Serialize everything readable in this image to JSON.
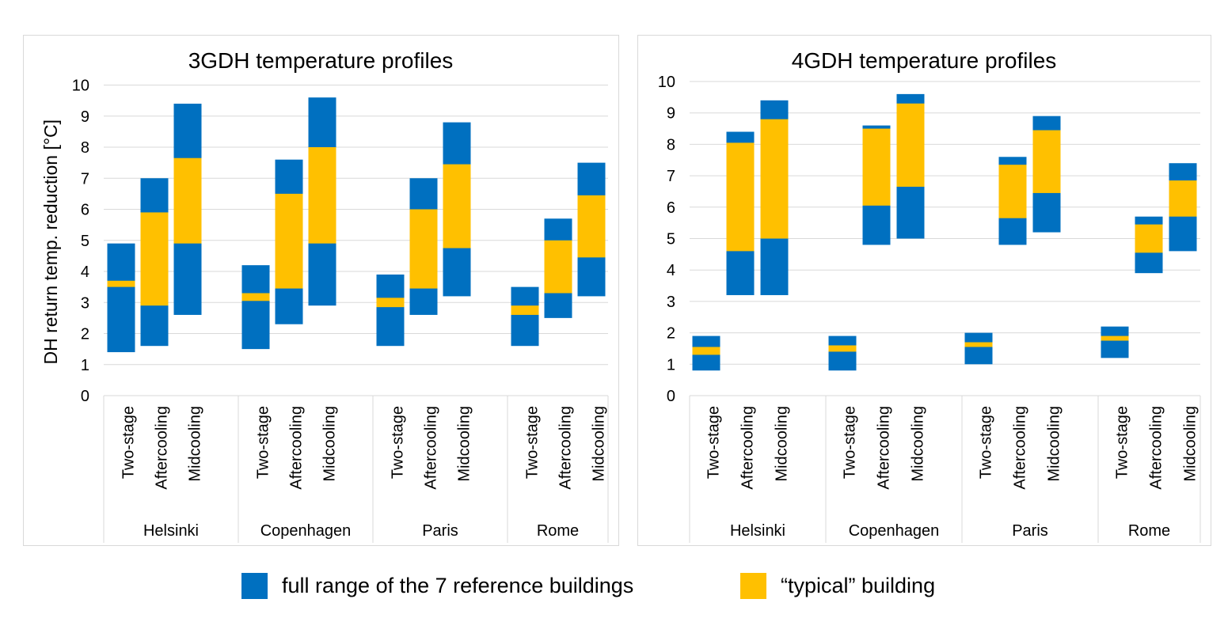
{
  "colors": {
    "range": "#0070C0",
    "typical": "#FFC000",
    "grid": "#D9D9D9",
    "frame": "#D9D9D9"
  },
  "legend": {
    "range_label": "full range of the 7 reference buildings",
    "typical_label": "“typical” building"
  },
  "chart_data": [
    {
      "type": "bar",
      "subtype": "floating-stacked-range",
      "title": "3GDH temperature profiles",
      "ylabel": "DH return temp. reduction [°C]",
      "xlabel": "",
      "ylim": [
        0,
        10
      ],
      "yticks": [
        "0",
        "1",
        "2",
        "3",
        "4",
        "5",
        "6",
        "7",
        "8",
        "9",
        "10"
      ],
      "grid": true,
      "legend_position": "bottom",
      "groups": [
        {
          "name": "Helsinki",
          "categories": [
            {
              "label": "Two-stage",
              "range": [
                1.4,
                4.9
              ],
              "typical": [
                3.5,
                3.7
              ]
            },
            {
              "label": "Aftercooling",
              "range": [
                1.6,
                7.0
              ],
              "typical": [
                2.9,
                5.9
              ]
            },
            {
              "label": "Midcooling",
              "range": [
                2.6,
                9.4
              ],
              "typical": [
                4.9,
                7.65
              ]
            }
          ]
        },
        {
          "name": "Copenhagen",
          "categories": [
            {
              "label": "Two-stage",
              "range": [
                1.5,
                4.2
              ],
              "typical": [
                3.05,
                3.3
              ]
            },
            {
              "label": "Aftercooling",
              "range": [
                2.3,
                7.6
              ],
              "typical": [
                3.45,
                6.5
              ]
            },
            {
              "label": "Midcooling",
              "range": [
                2.9,
                9.6
              ],
              "typical": [
                4.9,
                8.0
              ]
            }
          ]
        },
        {
          "name": "Paris",
          "categories": [
            {
              "label": "Two-stage",
              "range": [
                1.6,
                3.9
              ],
              "typical": [
                2.85,
                3.15
              ]
            },
            {
              "label": "Aftercooling",
              "range": [
                2.6,
                7.0
              ],
              "typical": [
                3.45,
                6.0
              ]
            },
            {
              "label": "Midcooling",
              "range": [
                3.2,
                8.8
              ],
              "typical": [
                4.75,
                7.45
              ]
            }
          ]
        },
        {
          "name": "Rome",
          "categories": [
            {
              "label": "Two-stage",
              "range": [
                1.6,
                3.5
              ],
              "typical": [
                2.6,
                2.9
              ]
            },
            {
              "label": "Aftercooling",
              "range": [
                2.5,
                5.7
              ],
              "typical": [
                3.3,
                5.0
              ]
            },
            {
              "label": "Midcooling",
              "range": [
                3.2,
                7.5
              ],
              "typical": [
                4.45,
                6.45
              ]
            }
          ]
        }
      ]
    },
    {
      "type": "bar",
      "subtype": "floating-stacked-range",
      "title": "4GDH temperature profiles",
      "ylabel": "",
      "xlabel": "",
      "ylim": [
        0,
        10
      ],
      "yticks": [
        "0",
        "1",
        "2",
        "3",
        "4",
        "5",
        "6",
        "7",
        "8",
        "9",
        "10"
      ],
      "grid": true,
      "legend_position": "bottom",
      "groups": [
        {
          "name": "Helsinki",
          "categories": [
            {
              "label": "Two-stage",
              "range": [
                0.8,
                1.9
              ],
              "typical": [
                1.3,
                1.55
              ]
            },
            {
              "label": "Aftercooling",
              "range": [
                3.2,
                8.4
              ],
              "typical": [
                4.6,
                8.05
              ]
            },
            {
              "label": "Midcooling",
              "range": [
                3.2,
                9.4
              ],
              "typical": [
                5.0,
                8.8
              ]
            }
          ]
        },
        {
          "name": "Copenhagen",
          "categories": [
            {
              "label": "Two-stage",
              "range": [
                0.8,
                1.9
              ],
              "typical": [
                1.4,
                1.6
              ]
            },
            {
              "label": "Aftercooling",
              "range": [
                4.8,
                8.6
              ],
              "typical": [
                6.05,
                8.5
              ]
            },
            {
              "label": "Midcooling",
              "range": [
                5.0,
                9.6
              ],
              "typical": [
                6.65,
                9.3
              ]
            }
          ]
        },
        {
          "name": "Paris",
          "categories": [
            {
              "label": "Two-stage",
              "range": [
                1.0,
                2.0
              ],
              "typical": [
                1.55,
                1.7
              ]
            },
            {
              "label": "Aftercooling",
              "range": [
                4.8,
                7.6
              ],
              "typical": [
                5.65,
                7.35
              ]
            },
            {
              "label": "Midcooling",
              "range": [
                5.2,
                8.9
              ],
              "typical": [
                6.45,
                8.45
              ]
            }
          ]
        },
        {
          "name": "Rome",
          "categories": [
            {
              "label": "Two-stage",
              "range": [
                1.2,
                2.2
              ],
              "typical": [
                1.75,
                1.9
              ]
            },
            {
              "label": "Aftercooling",
              "range": [
                3.9,
                5.7
              ],
              "typical": [
                4.55,
                5.45
              ]
            },
            {
              "label": "Midcooling",
              "range": [
                4.6,
                7.4
              ],
              "typical": [
                5.7,
                6.85
              ]
            }
          ]
        }
      ]
    }
  ]
}
